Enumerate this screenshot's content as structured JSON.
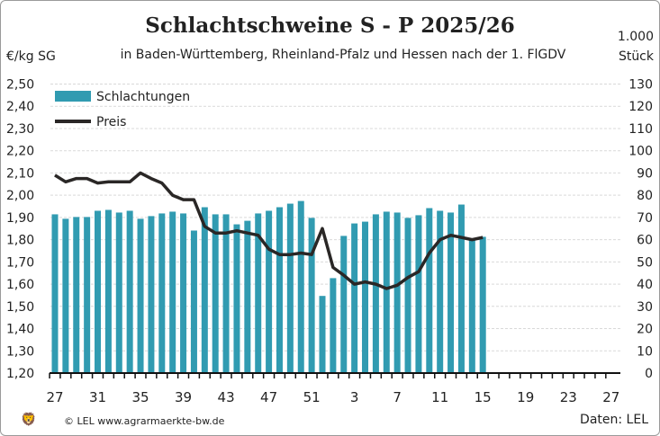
{
  "header": {
    "title": "Schlachtschweine S - P 2025/26",
    "subtitle": "in Baden-Württemberg, Rheinland-Pfalz und Hessen nach der 1. FlGDV"
  },
  "left_unit": "€/kg SG",
  "right_unit_line1": "1.000",
  "right_unit_line2": "Stück",
  "footer": {
    "copyright": "© LEL www.agrarmaerkte-bw.de",
    "source": "Daten: LEL"
  },
  "colors": {
    "bars": "#319bb1",
    "line": "#2a2726",
    "grid": "#d9d9d9"
  },
  "chart_data": {
    "type": "bar+line",
    "title": "Schlachtschweine S - P 2025/26",
    "weeks": [
      27,
      28,
      29,
      30,
      31,
      32,
      33,
      34,
      35,
      36,
      37,
      38,
      39,
      40,
      41,
      42,
      43,
      44,
      45,
      46,
      47,
      48,
      49,
      50,
      51,
      52,
      1,
      2,
      3,
      4,
      5,
      6,
      7,
      8,
      9,
      10,
      11,
      12,
      13,
      14,
      15,
      16,
      17,
      18,
      19,
      20,
      21,
      22,
      23,
      24,
      25,
      26,
      27
    ],
    "x_tick_labels": [
      "27",
      "31",
      "35",
      "39",
      "43",
      "47",
      "51",
      "3",
      "7",
      "11",
      "15",
      "19",
      "23",
      "27"
    ],
    "left_axis": {
      "label": "€/kg SG",
      "range": [
        1.2,
        2.5
      ],
      "step": 0.1,
      "tick_labels": [
        "1,20",
        "1,30",
        "1,40",
        "1,50",
        "1,60",
        "1,70",
        "1,80",
        "1,90",
        "2,00",
        "2,10",
        "2,20",
        "2,30",
        "2,40",
        "2,50"
      ]
    },
    "right_axis": {
      "label": "1.000 Stück",
      "range": [
        0,
        130
      ],
      "step": 10,
      "tick_labels": [
        "0",
        "10",
        "20",
        "30",
        "40",
        "50",
        "60",
        "70",
        "80",
        "90",
        "100",
        "110",
        "120",
        "130"
      ]
    },
    "grid": true,
    "legend_position": "top-left",
    "series": [
      {
        "name": "Schlachtungen",
        "type": "bar",
        "axis": "right",
        "values": [
          71.4,
          69.4,
          70.2,
          70.2,
          73,
          73.4,
          72.2,
          73,
          69.4,
          70.6,
          71.8,
          72.6,
          71.8,
          64.1,
          74.6,
          71.4,
          71.4,
          66.9,
          68.5,
          71.8,
          73,
          74.6,
          76.2,
          77.4,
          69.8,
          34.7,
          42.7,
          61.7,
          67.3,
          68.1,
          71.4,
          72.6,
          72.2,
          69.8,
          71,
          74.2,
          73,
          72.2,
          75.8,
          59.7,
          61.3
        ]
      },
      {
        "name": "Preis",
        "type": "line",
        "axis": "left",
        "values": [
          2.09,
          2.06,
          2.075,
          2.075,
          2.055,
          2.06,
          2.06,
          2.06,
          2.1,
          2.075,
          2.055,
          2.0,
          1.98,
          1.98,
          1.86,
          1.83,
          1.83,
          1.84,
          1.83,
          1.82,
          1.757,
          1.733,
          1.733,
          1.74,
          1.733,
          1.85,
          1.675,
          1.64,
          1.6,
          1.61,
          1.6,
          1.58,
          1.595,
          1.63,
          1.656,
          1.74,
          1.8,
          1.82,
          1.81,
          1.8,
          1.81
        ]
      }
    ]
  }
}
